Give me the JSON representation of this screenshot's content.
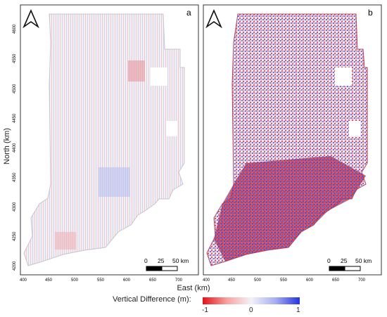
{
  "panels": [
    {
      "letter": "a"
    },
    {
      "letter": "b"
    }
  ],
  "axes": {
    "y_label": "North (km)",
    "x_label": "East (km)",
    "y_ticks": [
      "4600",
      "4550",
      "4500",
      "4450",
      "4400",
      "4350",
      "4300",
      "4250",
      "4200"
    ],
    "x_ticks": [
      "400",
      "450",
      "500",
      "550",
      "600",
      "650",
      "700"
    ]
  },
  "scale_bar": {
    "labels": [
      "0",
      "25",
      "50 km"
    ]
  },
  "legend": {
    "title": "Vertical Difference (m):",
    "ticks": [
      "-1",
      "0",
      "1"
    ],
    "colors": {
      "low": "#e3121a",
      "mid": "#f2f2f7",
      "high": "#2633df"
    }
  },
  "north_arrow": "north-arrow-icon"
}
